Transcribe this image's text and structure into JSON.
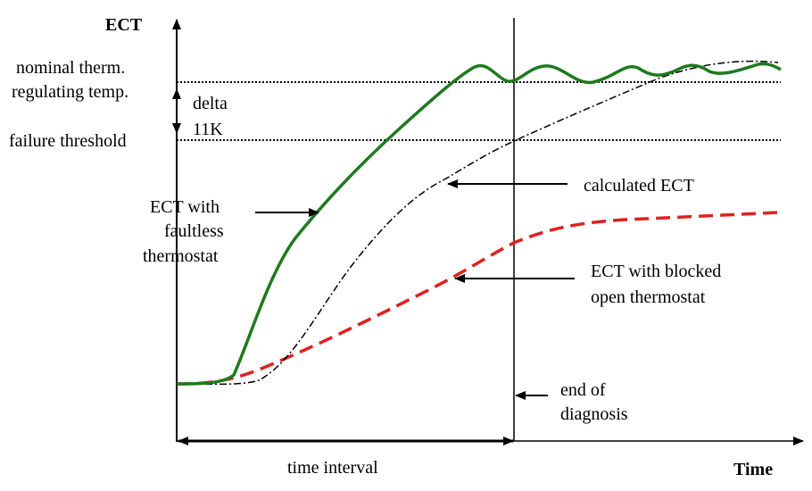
{
  "axes": {
    "y_label": "ECT",
    "x_label": "Time"
  },
  "levels": {
    "nominal_line1": "nominal  therm.",
    "nominal_line2": "regulating temp.",
    "failure": "failure threshold",
    "delta_line1": "delta",
    "delta_line2": "11K"
  },
  "annotations": {
    "faultless": [
      "ECT with",
      "faultless",
      "thermostat"
    ],
    "calculated": "calculated ECT",
    "blocked": [
      "ECT with blocked",
      "open thermostat"
    ],
    "end_of_diagnosis": [
      "end of",
      "diagnosis"
    ],
    "time_interval": "time interval"
  },
  "curves": [
    {
      "name": "ECT with faultless thermostat",
      "color": "#1e7a1e",
      "style": "solid"
    },
    {
      "name": "calculated ECT",
      "color": "#000000",
      "style": "dash-dot"
    },
    {
      "name": "ECT with blocked open thermostat",
      "color": "#e02020",
      "style": "dashed"
    }
  ]
}
